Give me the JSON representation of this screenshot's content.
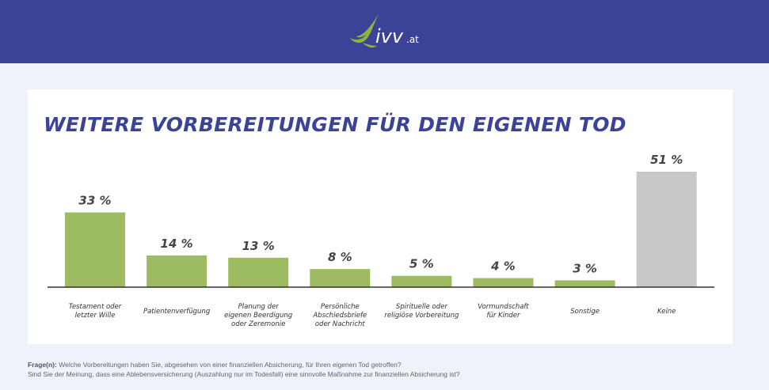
{
  "header": {
    "logo_text": "ivv",
    "logo_suffix": ".at",
    "brand_color": "#3b4396",
    "logo_color": "#8db43f"
  },
  "chart_data": {
    "type": "bar",
    "title": "WEITERE VORBEREITUNGEN FÜR DEN EIGENEN TOD",
    "categories": [
      "Testament oder letzter Wille",
      "Patientenverfügung",
      "Planung der eigenen Beerdigung oder Zeremonie",
      "Persönliche Abschiedsbriefe oder Nachricht",
      "Spirituelle oder religiöse Vorbereitung",
      "Vormundschaft für Kinder",
      "Sonstige",
      "Keine"
    ],
    "category_lines": [
      [
        "Testament oder",
        "letzter Wille"
      ],
      [
        "Patientenverfügung"
      ],
      [
        "Planung der",
        "eigenen Beerdigung",
        "oder Zeremonie"
      ],
      [
        "Persönliche",
        "Abschiedsbriefe",
        "oder Nachricht"
      ],
      [
        "Spirituelle oder",
        "religiöse Vorbereitung"
      ],
      [
        "Vormundschaft",
        "für Kinder"
      ],
      [
        "Sonstige"
      ],
      [
        "Keine"
      ]
    ],
    "values": [
      33,
      14,
      13,
      8,
      5,
      4,
      3,
      51
    ],
    "labels": [
      "33 %",
      "14 %",
      "13 %",
      "8 %",
      "5 %",
      "4 %",
      "3 %",
      "51 %"
    ],
    "unit": "%",
    "colors": [
      "#9dbb61",
      "#9dbb61",
      "#9dbb61",
      "#9dbb61",
      "#9dbb61",
      "#9dbb61",
      "#9dbb61",
      "#c8c8c8"
    ],
    "grid": false
  },
  "footer": {
    "question_label": "Frage(n):",
    "question1": "Welche Vorbereitungen haben Sie, abgesehen von einer finanziellen Absicherung, für Ihren eigenen Tod getroffen?",
    "question2": "Sind Sie der Meinung, dass eine Ablebensversicherung (Auszahlung nur im Todesfall) eine sinnvolle Maßnahme zur finanziellen Absicherung ist?"
  }
}
